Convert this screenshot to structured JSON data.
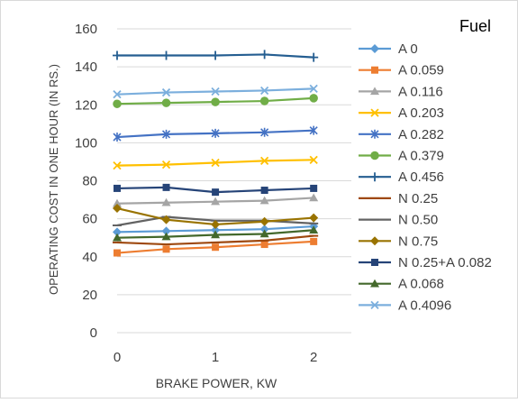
{
  "chart_data": {
    "type": "line",
    "title": "",
    "xlabel": "BRAKE POWER, KW",
    "ylabel": "OPERATING COST IN ONE HOUR (IN RS.)",
    "legend_title": "Fuel",
    "legend_position": "right",
    "grid": true,
    "xlim": [
      0,
      2.2
    ],
    "ylim": [
      0,
      160
    ],
    "x_ticks": [
      "0",
      "1",
      "2"
    ],
    "y_ticks": [
      "0",
      "20",
      "40",
      "60",
      "80",
      "100",
      "120",
      "140",
      "160"
    ],
    "x": [
      0,
      0.5,
      1,
      1.5,
      2
    ],
    "series": [
      {
        "name": "A 0",
        "color": "#5b9bd5",
        "marker": "diamond",
        "values": [
          53,
          53.5,
          54,
          54.5,
          56
        ]
      },
      {
        "name": "A 0.059",
        "color": "#ed7d31",
        "marker": "square",
        "values": [
          42,
          44,
          45,
          46.5,
          48
        ]
      },
      {
        "name": "A 0.116",
        "color": "#a5a5a5",
        "marker": "triangle",
        "values": [
          68,
          68.5,
          69,
          69.5,
          71
        ]
      },
      {
        "name": "A 0.203",
        "color": "#ffc000",
        "marker": "x",
        "values": [
          88,
          88.5,
          89.5,
          90.5,
          91
        ]
      },
      {
        "name": "A 0.282",
        "color": "#4472c4",
        "marker": "star",
        "values": [
          103,
          104.5,
          105,
          105.5,
          106.5
        ]
      },
      {
        "name": "A 0.379",
        "color": "#70ad47",
        "marker": "circle",
        "values": [
          120.5,
          121,
          121.5,
          122,
          123.5
        ]
      },
      {
        "name": "A 0.456",
        "color": "#255e91",
        "marker": "plus",
        "values": [
          146,
          146,
          146,
          146.5,
          145
        ]
      },
      {
        "name": "N 0.25",
        "color": "#9e480e",
        "marker": "dash",
        "values": [
          47.5,
          46.5,
          47.5,
          48.5,
          51
        ]
      },
      {
        "name": "N 0.50",
        "color": "#636363",
        "marker": "dash",
        "values": [
          56.5,
          61,
          59,
          59,
          57.5
        ]
      },
      {
        "name": "N 0.75",
        "color": "#997300",
        "marker": "diamond",
        "values": [
          65.5,
          59.5,
          57,
          58.5,
          60.5
        ]
      },
      {
        "name": "N 0.25+A 0.082",
        "color": "#264478",
        "marker": "square",
        "values": [
          76,
          76.5,
          74,
          75,
          76
        ]
      },
      {
        "name": "A 0.068",
        "color": "#43682b",
        "marker": "triangle",
        "values": [
          50,
          50.5,
          51.5,
          52,
          54
        ]
      },
      {
        "name": "A 0.4096",
        "color": "#7cafdd",
        "marker": "x",
        "values": [
          125.5,
          126.5,
          127,
          127.5,
          128.5
        ]
      }
    ]
  }
}
